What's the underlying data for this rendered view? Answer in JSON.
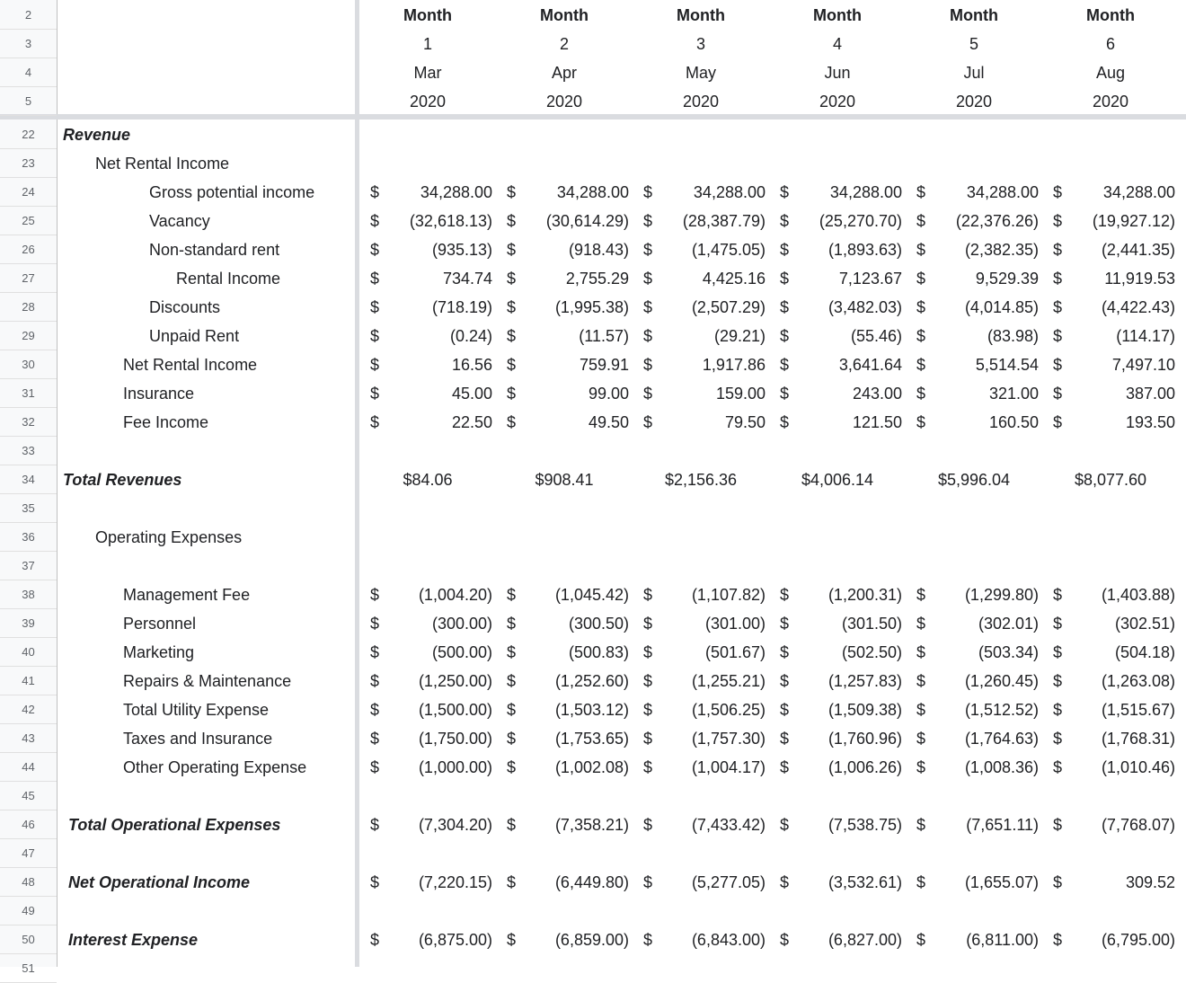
{
  "header_rows": {
    "row_numbers": [
      "2",
      "3",
      "4",
      "5"
    ],
    "month_label": [
      "Month",
      "Month",
      "Month",
      "Month",
      "Month",
      "Month"
    ],
    "month_index": [
      "1",
      "2",
      "3",
      "4",
      "5",
      "6"
    ],
    "month_name": [
      "Mar",
      "Apr",
      "May",
      "Jun",
      "Jul",
      "Aug"
    ],
    "year": [
      "2020",
      "2020",
      "2020",
      "2020",
      "2020",
      "2020"
    ]
  },
  "body_rows": [
    {
      "rn": "22",
      "label": "Revenue",
      "style": "bi",
      "indent": 70,
      "dollar": false,
      "values": []
    },
    {
      "rn": "23",
      "label": "Net Rental Income",
      "style": "",
      "indent": 106,
      "dollar": false,
      "values": []
    },
    {
      "rn": "24",
      "label": "Gross potential income",
      "style": "",
      "indent": 166,
      "dollar": true,
      "values": [
        "34,288.00",
        "34,288.00",
        "34,288.00",
        "34,288.00",
        "34,288.00",
        "34,288.00"
      ]
    },
    {
      "rn": "25",
      "label": "Vacancy",
      "style": "",
      "indent": 166,
      "dollar": true,
      "values": [
        "(32,618.13)",
        "(30,614.29)",
        "(28,387.79)",
        "(25,270.70)",
        "(22,376.26)",
        "(19,927.12)"
      ]
    },
    {
      "rn": "26",
      "label": "Non-standard rent",
      "style": "",
      "indent": 166,
      "dollar": true,
      "values": [
        "(935.13)",
        "(918.43)",
        "(1,475.05)",
        "(1,893.63)",
        "(2,382.35)",
        "(2,441.35)"
      ]
    },
    {
      "rn": "27",
      "label": "Rental Income",
      "style": "",
      "indent": 196,
      "dollar": true,
      "values": [
        "734.74",
        "2,755.29",
        "4,425.16",
        "7,123.67",
        "9,529.39",
        "11,919.53"
      ]
    },
    {
      "rn": "28",
      "label": "Discounts",
      "style": "",
      "indent": 166,
      "dollar": true,
      "values": [
        "(718.19)",
        "(1,995.38)",
        "(2,507.29)",
        "(3,482.03)",
        "(4,014.85)",
        "(4,422.43)"
      ]
    },
    {
      "rn": "29",
      "label": "Unpaid Rent",
      "style": "",
      "indent": 166,
      "dollar": true,
      "values": [
        "(0.24)",
        "(11.57)",
        "(29.21)",
        "(55.46)",
        "(83.98)",
        "(114.17)"
      ]
    },
    {
      "rn": "30",
      "label": "Net Rental Income",
      "style": "",
      "indent": 137,
      "dollar": true,
      "values": [
        "16.56",
        "759.91",
        "1,917.86",
        "3,641.64",
        "5,514.54",
        "7,497.10"
      ]
    },
    {
      "rn": "31",
      "label": "Insurance",
      "style": "",
      "indent": 137,
      "dollar": true,
      "values": [
        "45.00",
        "99.00",
        "159.00",
        "243.00",
        "321.00",
        "387.00"
      ]
    },
    {
      "rn": "32",
      "label": "Fee Income",
      "style": "",
      "indent": 137,
      "dollar": true,
      "values": [
        "22.50",
        "49.50",
        "79.50",
        "121.50",
        "160.50",
        "193.50"
      ]
    },
    {
      "rn": "33",
      "label": "",
      "style": "",
      "indent": 70,
      "dollar": false,
      "values": []
    },
    {
      "rn": "34",
      "label": "Total Revenues",
      "style": "bi",
      "indent": 70,
      "dollar": false,
      "centered": true,
      "values": [
        "$84.06",
        "$908.41",
        "$2,156.36",
        "$4,006.14",
        "$5,996.04",
        "$8,077.60"
      ]
    },
    {
      "rn": "35",
      "label": "",
      "style": "",
      "indent": 70,
      "dollar": false,
      "values": []
    },
    {
      "rn": "36",
      "label": "Operating Expenses",
      "style": "",
      "indent": 106,
      "dollar": false,
      "values": []
    },
    {
      "rn": "37",
      "label": "",
      "style": "",
      "indent": 70,
      "dollar": false,
      "values": []
    },
    {
      "rn": "38",
      "label": "Management Fee",
      "style": "",
      "indent": 137,
      "dollar": true,
      "values": [
        "(1,004.20)",
        "(1,045.42)",
        "(1,107.82)",
        "(1,200.31)",
        "(1,299.80)",
        "(1,403.88)"
      ]
    },
    {
      "rn": "39",
      "label": "Personnel",
      "style": "",
      "indent": 137,
      "dollar": true,
      "values": [
        "(300.00)",
        "(300.50)",
        "(301.00)",
        "(301.50)",
        "(302.01)",
        "(302.51)"
      ]
    },
    {
      "rn": "40",
      "label": "Marketing",
      "style": "",
      "indent": 137,
      "dollar": true,
      "values": [
        "(500.00)",
        "(500.83)",
        "(501.67)",
        "(502.50)",
        "(503.34)",
        "(504.18)"
      ]
    },
    {
      "rn": "41",
      "label": "Repairs & Maintenance",
      "style": "",
      "indent": 137,
      "dollar": true,
      "values": [
        "(1,250.00)",
        "(1,252.60)",
        "(1,255.21)",
        "(1,257.83)",
        "(1,260.45)",
        "(1,263.08)"
      ]
    },
    {
      "rn": "42",
      "label": "Total Utility Expense",
      "style": "",
      "indent": 137,
      "dollar": true,
      "values": [
        "(1,500.00)",
        "(1,503.12)",
        "(1,506.25)",
        "(1,509.38)",
        "(1,512.52)",
        "(1,515.67)"
      ]
    },
    {
      "rn": "43",
      "label": "Taxes and Insurance",
      "style": "",
      "indent": 137,
      "dollar": true,
      "values": [
        "(1,750.00)",
        "(1,753.65)",
        "(1,757.30)",
        "(1,760.96)",
        "(1,764.63)",
        "(1,768.31)"
      ]
    },
    {
      "rn": "44",
      "label": "Other Operating Expense",
      "style": "",
      "indent": 137,
      "dollar": true,
      "values": [
        "(1,000.00)",
        "(1,002.08)",
        "(1,004.17)",
        "(1,006.26)",
        "(1,008.36)",
        "(1,010.46)"
      ]
    },
    {
      "rn": "45",
      "label": "",
      "style": "",
      "indent": 70,
      "dollar": false,
      "values": []
    },
    {
      "rn": "46",
      "label": "Total Operational Expenses",
      "style": "bi",
      "indent": 76,
      "dollar": true,
      "values": [
        "(7,304.20)",
        "(7,358.21)",
        "(7,433.42)",
        "(7,538.75)",
        "(7,651.11)",
        "(7,768.07)"
      ]
    },
    {
      "rn": "47",
      "label": "",
      "style": "",
      "indent": 70,
      "dollar": false,
      "values": []
    },
    {
      "rn": "48",
      "label": "Net Operational Income",
      "style": "bi",
      "indent": 76,
      "dollar": true,
      "values": [
        "(7,220.15)",
        "(6,449.80)",
        "(5,277.05)",
        "(3,532.61)",
        "(1,655.07)",
        "309.52"
      ]
    },
    {
      "rn": "49",
      "label": "",
      "style": "",
      "indent": 70,
      "dollar": false,
      "values": []
    },
    {
      "rn": "50",
      "label": "Interest Expense",
      "style": "bi",
      "indent": 76,
      "dollar": true,
      "values": [
        "(6,875.00)",
        "(6,859.00)",
        "(6,843.00)",
        "(6,827.00)",
        "(6,811.00)",
        "(6,795.00)"
      ]
    }
  ],
  "dollar_sign": "$",
  "partial_row_number": "51"
}
